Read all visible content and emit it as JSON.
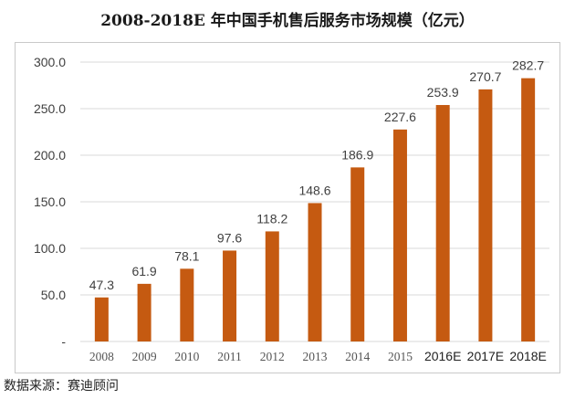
{
  "title": "2008-2018E 年中国手机售后服务市场规模（亿元）",
  "source": "数据来源：赛迪顾问",
  "colors": {
    "bar": "#C55A11",
    "grid": "#d9d9d9",
    "text": "#404040"
  },
  "chart_data": {
    "type": "bar",
    "title": "2008-2018E 年中国手机售后服务市场规模（亿元）",
    "xlabel": "",
    "ylabel": "",
    "ylim": [
      0,
      300
    ],
    "yticks": [
      "-",
      "50.0",
      "100.0",
      "150.0",
      "200.0",
      "250.0",
      "300.0"
    ],
    "ytick_values": [
      0,
      50,
      100,
      150,
      200,
      250,
      300
    ],
    "grid": true,
    "legend": "none",
    "categories": [
      "2008",
      "2009",
      "2010",
      "2011",
      "2012",
      "2013",
      "2014",
      "2015",
      "2016E",
      "2017E",
      "2018E"
    ],
    "values": [
      47.3,
      61.9,
      78.1,
      97.6,
      118.2,
      148.6,
      186.9,
      227.6,
      253.9,
      270.7,
      282.7
    ],
    "labels": [
      "47.3",
      "61.9",
      "78.1",
      "97.6",
      "118.2",
      "148.6",
      "186.9",
      "227.6",
      "253.9",
      "270.7",
      "282.7"
    ]
  }
}
